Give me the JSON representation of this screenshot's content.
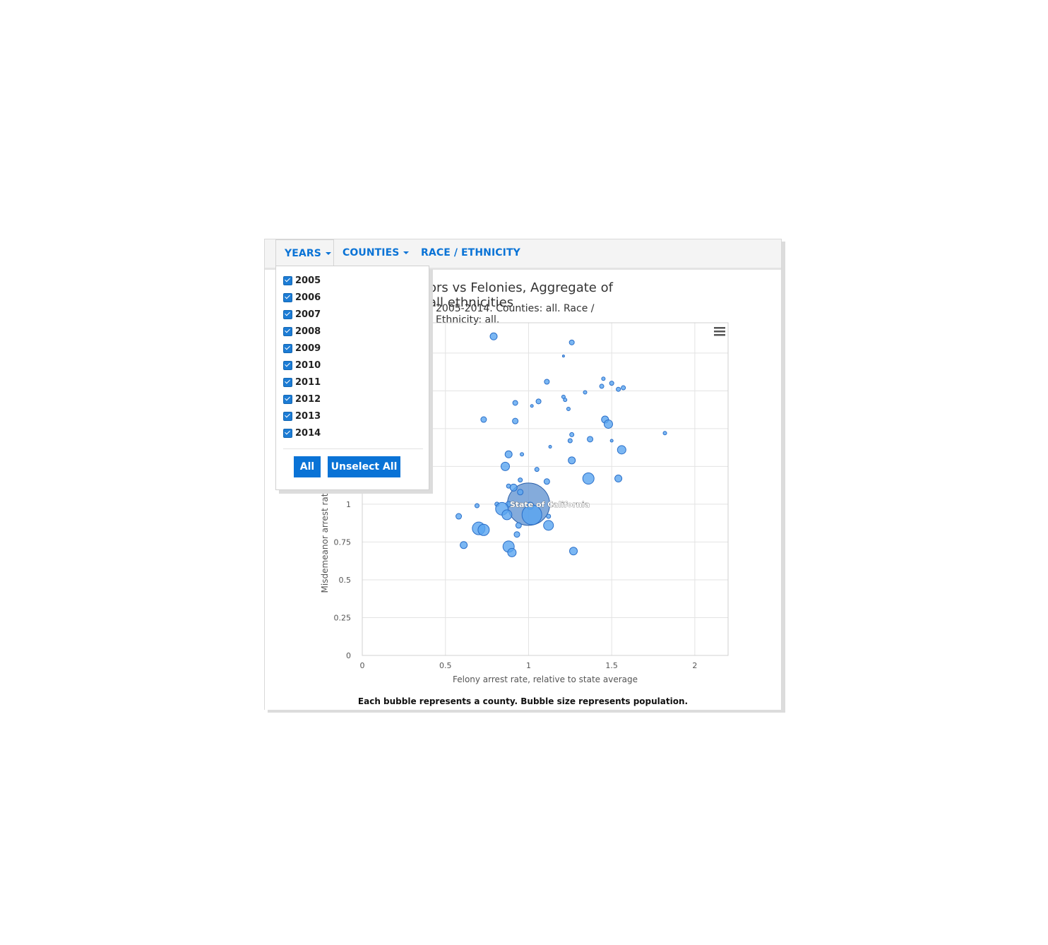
{
  "nav": {
    "tabs": [
      {
        "label": "YEARS"
      },
      {
        "label": "COUNTIES"
      },
      {
        "label": "RACE / ETHNICITY"
      }
    ]
  },
  "years_dropdown": {
    "years": [
      "2005",
      "2006",
      "2007",
      "2008",
      "2009",
      "2010",
      "2011",
      "2012",
      "2013",
      "2014"
    ],
    "all_label": "All",
    "unselect_label": "Unselect All"
  },
  "chart": {
    "title_visible": "ors vs Felonies, Aggregate of all ethnicities",
    "subtitle_visible": "2005-2014. Counties: all. Race / Ethnicity: all.",
    "footnote": "Each bubble represents a county. Bubble size represents population."
  },
  "colors": {
    "accent": "#0a73d6",
    "bubble": "#5aa5f0",
    "bubble_stroke": "#2a6fc9"
  },
  "chart_data": {
    "type": "scatter",
    "xlabel": "Felony arrest rate, relative to state average",
    "ylabel": "Misdemeanor arrest rat",
    "xlim": [
      0,
      2.2
    ],
    "ylim": [
      0,
      2.2
    ],
    "x_ticks": [
      "0",
      "0.5",
      "1",
      "1.5",
      "2"
    ],
    "y_ticks": [
      "0",
      "0.25",
      "0.5",
      "0.75",
      "1"
    ],
    "grid": true,
    "highlight": {
      "x": 1.0,
      "y": 1.0,
      "r": 30,
      "label": "State of California"
    },
    "points": [
      {
        "x": 0.79,
        "y": 2.11,
        "r": 5
      },
      {
        "x": 1.26,
        "y": 2.07,
        "r": 3.5
      },
      {
        "x": 1.21,
        "y": 1.98,
        "r": 1.5
      },
      {
        "x": 1.11,
        "y": 1.81,
        "r": 3.5
      },
      {
        "x": 1.45,
        "y": 1.83,
        "r": 2.5
      },
      {
        "x": 1.5,
        "y": 1.8,
        "r": 3
      },
      {
        "x": 1.44,
        "y": 1.78,
        "r": 3
      },
      {
        "x": 1.54,
        "y": 1.76,
        "r": 3
      },
      {
        "x": 1.57,
        "y": 1.77,
        "r": 3
      },
      {
        "x": 1.34,
        "y": 1.74,
        "r": 2.5
      },
      {
        "x": 1.21,
        "y": 1.71,
        "r": 2.5
      },
      {
        "x": 1.22,
        "y": 1.69,
        "r": 2.5
      },
      {
        "x": 1.06,
        "y": 1.68,
        "r": 3.5
      },
      {
        "x": 0.92,
        "y": 1.67,
        "r": 3.5
      },
      {
        "x": 1.02,
        "y": 1.65,
        "r": 2
      },
      {
        "x": 1.24,
        "y": 1.63,
        "r": 2.5
      },
      {
        "x": 0.73,
        "y": 1.56,
        "r": 4
      },
      {
        "x": 0.92,
        "y": 1.55,
        "r": 4
      },
      {
        "x": 1.46,
        "y": 1.56,
        "r": 5
      },
      {
        "x": 1.48,
        "y": 1.53,
        "r": 6
      },
      {
        "x": 1.82,
        "y": 1.47,
        "r": 2.5
      },
      {
        "x": 1.26,
        "y": 1.46,
        "r": 3
      },
      {
        "x": 1.25,
        "y": 1.42,
        "r": 3
      },
      {
        "x": 1.37,
        "y": 1.43,
        "r": 4
      },
      {
        "x": 1.5,
        "y": 1.42,
        "r": 2
      },
      {
        "x": 1.13,
        "y": 1.38,
        "r": 2
      },
      {
        "x": 1.56,
        "y": 1.36,
        "r": 6
      },
      {
        "x": 0.88,
        "y": 1.33,
        "r": 5
      },
      {
        "x": 0.96,
        "y": 1.33,
        "r": 2.5
      },
      {
        "x": 1.26,
        "y": 1.29,
        "r": 5
      },
      {
        "x": 0.86,
        "y": 1.25,
        "r": 6
      },
      {
        "x": 1.05,
        "y": 1.23,
        "r": 3
      },
      {
        "x": 1.36,
        "y": 1.17,
        "r": 8
      },
      {
        "x": 1.54,
        "y": 1.17,
        "r": 5
      },
      {
        "x": 0.95,
        "y": 1.16,
        "r": 3
      },
      {
        "x": 1.11,
        "y": 1.15,
        "r": 4
      },
      {
        "x": 0.88,
        "y": 1.12,
        "r": 3
      },
      {
        "x": 0.91,
        "y": 1.11,
        "r": 5
      },
      {
        "x": 0.95,
        "y": 1.08,
        "r": 4
      },
      {
        "x": 0.81,
        "y": 1.0,
        "r": 3
      },
      {
        "x": 0.88,
        "y": 1.0,
        "r": 4
      },
      {
        "x": 1.01,
        "y": 0.99,
        "r": 5
      },
      {
        "x": 0.69,
        "y": 0.99,
        "r": 3
      },
      {
        "x": 0.84,
        "y": 0.97,
        "r": 9
      },
      {
        "x": 0.87,
        "y": 0.93,
        "r": 7
      },
      {
        "x": 1.02,
        "y": 0.93,
        "r": 14
      },
      {
        "x": 1.12,
        "y": 0.92,
        "r": 3
      },
      {
        "x": 0.58,
        "y": 0.92,
        "r": 4
      },
      {
        "x": 0.94,
        "y": 0.86,
        "r": 4
      },
      {
        "x": 0.7,
        "y": 0.84,
        "r": 9
      },
      {
        "x": 0.73,
        "y": 0.83,
        "r": 8
      },
      {
        "x": 1.12,
        "y": 0.86,
        "r": 7
      },
      {
        "x": 0.93,
        "y": 0.8,
        "r": 4
      },
      {
        "x": 0.61,
        "y": 0.73,
        "r": 5
      },
      {
        "x": 0.88,
        "y": 0.72,
        "r": 8
      },
      {
        "x": 0.9,
        "y": 0.68,
        "r": 6
      },
      {
        "x": 1.27,
        "y": 0.69,
        "r": 5.5
      }
    ]
  }
}
